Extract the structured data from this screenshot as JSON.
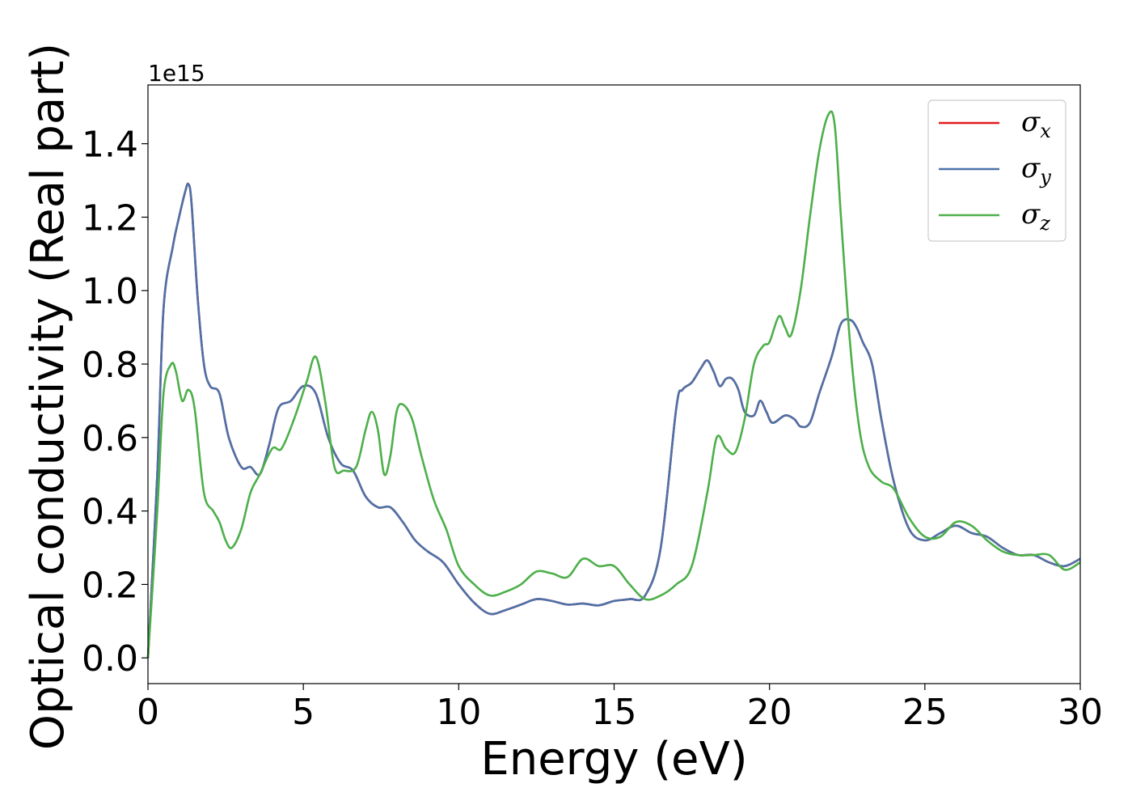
{
  "chart_data": {
    "type": "line",
    "xlabel": "Energy (eV)",
    "ylabel": "Optical conductivity (Real part)",
    "y_offset_label": "1e15",
    "xlim": [
      0,
      30
    ],
    "ylim": [
      -0.07,
      1.56
    ],
    "x_ticks": [
      0,
      5,
      10,
      15,
      20,
      25,
      30
    ],
    "x_tick_labels": [
      "0",
      "5",
      "10",
      "15",
      "20",
      "25",
      "30"
    ],
    "y_ticks": [
      0.0,
      0.2,
      0.4,
      0.6,
      0.8,
      1.0,
      1.2,
      1.4
    ],
    "y_tick_labels": [
      "0.0",
      "0.2",
      "0.4",
      "0.6",
      "0.8",
      "1.0",
      "1.2",
      "1.4"
    ],
    "grid": false,
    "legend_position": "top-right",
    "series": [
      {
        "name": "σx",
        "symbol": "σ",
        "subscript": "x",
        "color": "#e41a1c",
        "x": [
          0,
          0.3,
          0.5,
          0.8,
          1.0,
          1.2,
          1.3,
          1.4,
          1.6,
          1.8,
          2.0,
          2.3,
          2.6,
          3.0,
          3.3,
          3.6,
          3.9,
          4.2,
          4.6,
          5.0,
          5.4,
          5.8,
          6.2,
          6.6,
          7.0,
          7.4,
          7.8,
          8.2,
          8.6,
          9.0,
          9.5,
          10.0,
          10.5,
          11.0,
          11.5,
          12.0,
          12.5,
          13.0,
          13.5,
          14.0,
          14.5,
          15.0,
          15.5,
          16.0,
          16.5,
          17.0,
          17.2,
          17.5,
          17.8,
          18.0,
          18.2,
          18.4,
          18.6,
          18.8,
          19.0,
          19.2,
          19.5,
          19.7,
          19.9,
          20.1,
          20.5,
          20.8,
          21.0,
          21.3,
          21.6,
          22.0,
          22.3,
          22.6,
          22.8,
          23.0,
          23.3,
          23.6,
          24.0,
          24.5,
          25.0,
          25.5,
          26.0,
          26.5,
          27.0,
          27.5,
          28.0,
          28.5,
          29.0,
          29.5,
          30.0
        ],
        "y": [
          0.0,
          0.5,
          0.95,
          1.12,
          1.2,
          1.27,
          1.29,
          1.24,
          0.98,
          0.8,
          0.74,
          0.72,
          0.6,
          0.52,
          0.52,
          0.5,
          0.58,
          0.68,
          0.7,
          0.74,
          0.72,
          0.6,
          0.53,
          0.51,
          0.44,
          0.41,
          0.41,
          0.37,
          0.32,
          0.29,
          0.26,
          0.2,
          0.15,
          0.12,
          0.13,
          0.145,
          0.16,
          0.155,
          0.145,
          0.148,
          0.143,
          0.155,
          0.16,
          0.17,
          0.3,
          0.68,
          0.73,
          0.75,
          0.79,
          0.81,
          0.78,
          0.74,
          0.76,
          0.76,
          0.73,
          0.67,
          0.66,
          0.7,
          0.67,
          0.64,
          0.66,
          0.65,
          0.63,
          0.64,
          0.72,
          0.82,
          0.91,
          0.92,
          0.9,
          0.86,
          0.8,
          0.65,
          0.48,
          0.35,
          0.32,
          0.34,
          0.36,
          0.34,
          0.33,
          0.3,
          0.28,
          0.28,
          0.26,
          0.25,
          0.27
        ]
      },
      {
        "name": "σy",
        "symbol": "σ",
        "subscript": "y",
        "color": "#4c72a8",
        "x": [
          0,
          0.3,
          0.5,
          0.8,
          1.0,
          1.2,
          1.3,
          1.4,
          1.6,
          1.8,
          2.0,
          2.3,
          2.6,
          3.0,
          3.3,
          3.6,
          3.9,
          4.2,
          4.6,
          5.0,
          5.4,
          5.8,
          6.2,
          6.6,
          7.0,
          7.4,
          7.8,
          8.2,
          8.6,
          9.0,
          9.5,
          10.0,
          10.5,
          11.0,
          11.5,
          12.0,
          12.5,
          13.0,
          13.5,
          14.0,
          14.5,
          15.0,
          15.5,
          16.0,
          16.5,
          17.0,
          17.2,
          17.5,
          17.8,
          18.0,
          18.2,
          18.4,
          18.6,
          18.8,
          19.0,
          19.2,
          19.5,
          19.7,
          19.9,
          20.1,
          20.5,
          20.8,
          21.0,
          21.3,
          21.6,
          22.0,
          22.3,
          22.6,
          22.8,
          23.0,
          23.3,
          23.6,
          24.0,
          24.5,
          25.0,
          25.5,
          26.0,
          26.5,
          27.0,
          27.5,
          28.0,
          28.5,
          29.0,
          29.5,
          30.0
        ],
        "y": [
          0.0,
          0.5,
          0.95,
          1.12,
          1.2,
          1.27,
          1.29,
          1.24,
          0.98,
          0.8,
          0.74,
          0.72,
          0.6,
          0.52,
          0.52,
          0.5,
          0.58,
          0.68,
          0.7,
          0.74,
          0.72,
          0.6,
          0.53,
          0.51,
          0.44,
          0.41,
          0.41,
          0.37,
          0.32,
          0.29,
          0.26,
          0.2,
          0.15,
          0.12,
          0.13,
          0.145,
          0.16,
          0.155,
          0.145,
          0.148,
          0.143,
          0.155,
          0.16,
          0.17,
          0.3,
          0.68,
          0.73,
          0.75,
          0.79,
          0.81,
          0.78,
          0.74,
          0.76,
          0.76,
          0.73,
          0.67,
          0.66,
          0.7,
          0.67,
          0.64,
          0.66,
          0.65,
          0.63,
          0.64,
          0.72,
          0.82,
          0.91,
          0.92,
          0.9,
          0.86,
          0.8,
          0.65,
          0.48,
          0.35,
          0.32,
          0.34,
          0.36,
          0.34,
          0.33,
          0.3,
          0.28,
          0.28,
          0.26,
          0.25,
          0.27
        ]
      },
      {
        "name": "σz",
        "symbol": "σ",
        "subscript": "z",
        "color": "#4daf4a",
        "x": [
          0,
          0.3,
          0.5,
          0.75,
          0.9,
          1.1,
          1.3,
          1.5,
          1.8,
          2.1,
          2.3,
          2.5,
          2.7,
          3.0,
          3.3,
          3.6,
          4.0,
          4.3,
          4.7,
          5.1,
          5.4,
          5.7,
          6.0,
          6.3,
          6.7,
          7.0,
          7.2,
          7.4,
          7.6,
          7.8,
          8.0,
          8.2,
          8.5,
          8.8,
          9.2,
          9.6,
          10.0,
          10.5,
          11.0,
          11.5,
          12.0,
          12.5,
          13.0,
          13.5,
          14.0,
          14.5,
          15.0,
          15.5,
          16.0,
          16.5,
          17.0,
          17.5,
          18.0,
          18.3,
          18.6,
          18.9,
          19.2,
          19.5,
          19.8,
          20.0,
          20.3,
          20.5,
          20.7,
          21.0,
          21.3,
          21.6,
          21.9,
          22.1,
          22.3,
          22.6,
          22.9,
          23.2,
          23.6,
          24.0,
          24.5,
          25.0,
          25.5,
          26.0,
          26.5,
          27.0,
          27.5,
          28.0,
          28.5,
          29.0,
          29.5,
          30.0
        ],
        "y": [
          0.0,
          0.4,
          0.72,
          0.8,
          0.78,
          0.7,
          0.73,
          0.68,
          0.45,
          0.4,
          0.37,
          0.32,
          0.3,
          0.35,
          0.45,
          0.5,
          0.57,
          0.57,
          0.65,
          0.75,
          0.82,
          0.7,
          0.52,
          0.51,
          0.52,
          0.62,
          0.67,
          0.62,
          0.5,
          0.55,
          0.67,
          0.69,
          0.65,
          0.55,
          0.43,
          0.35,
          0.25,
          0.2,
          0.17,
          0.18,
          0.2,
          0.235,
          0.23,
          0.22,
          0.27,
          0.25,
          0.25,
          0.2,
          0.16,
          0.17,
          0.2,
          0.25,
          0.45,
          0.6,
          0.57,
          0.56,
          0.65,
          0.8,
          0.85,
          0.86,
          0.93,
          0.9,
          0.88,
          1.0,
          1.2,
          1.38,
          1.48,
          1.45,
          1.2,
          0.85,
          0.62,
          0.52,
          0.48,
          0.46,
          0.38,
          0.33,
          0.33,
          0.37,
          0.36,
          0.32,
          0.29,
          0.28,
          0.28,
          0.28,
          0.24,
          0.26
        ]
      }
    ]
  }
}
